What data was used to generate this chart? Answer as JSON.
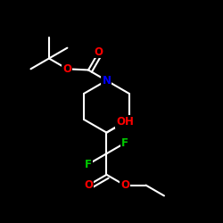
{
  "background_color": "#000000",
  "bond_color": "#ffffff",
  "atom_colors": {
    "O": "#ff0000",
    "N": "#0000ff",
    "F": "#00cc00",
    "C": "#ffffff",
    "H": "#ffffff"
  },
  "bond_width": 1.5,
  "font_size": 8.5,
  "fig_size": [
    2.5,
    2.5
  ],
  "dpi": 100
}
